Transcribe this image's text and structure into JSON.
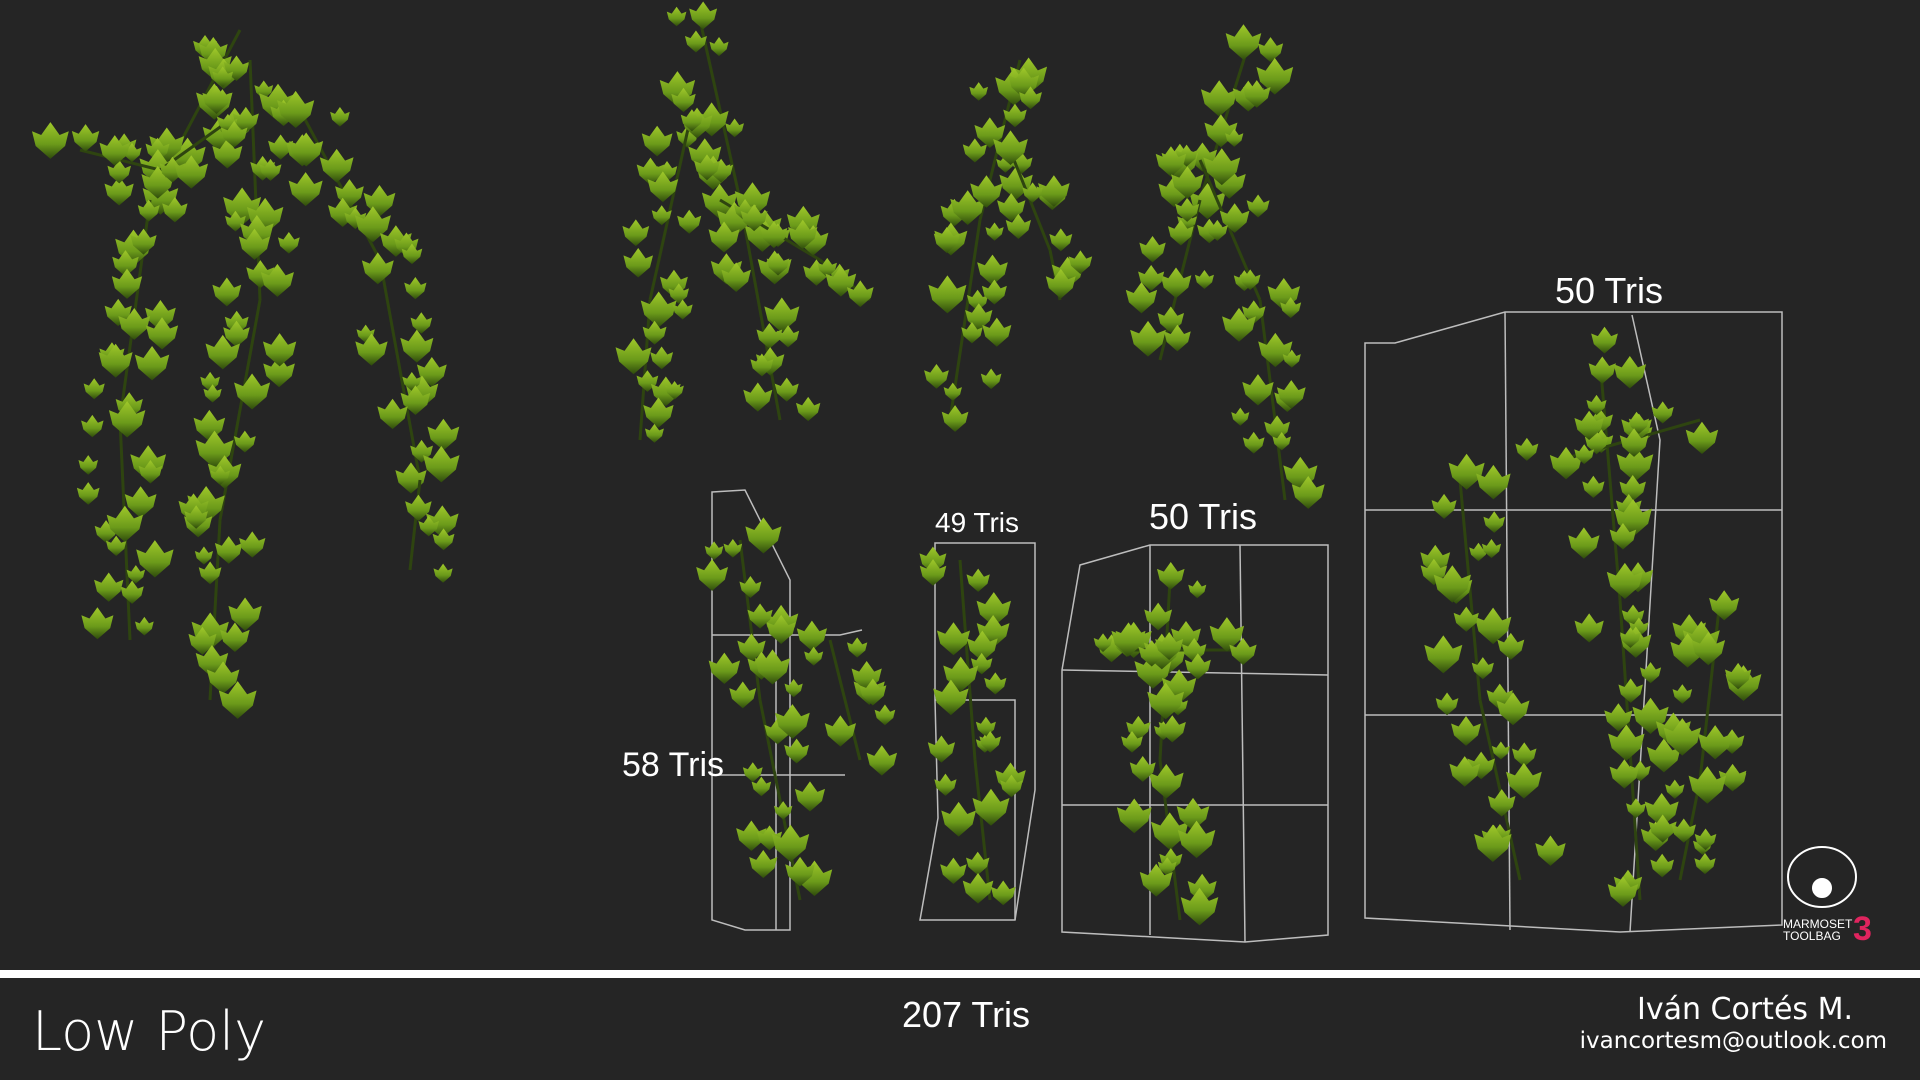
{
  "labels": {
    "big_card": "50 Tris",
    "card_b": "49 Tris",
    "card_c": "50 Tris",
    "card_a": "58 Tris"
  },
  "footer": {
    "title": "Low Poly",
    "total": "207 Tris",
    "author": "Iván Cortés M.",
    "email": "ivancortesm@outlook.com"
  },
  "logo": {
    "line1": "MARMOSET",
    "line2": "TOOLBAG",
    "version": "3"
  }
}
